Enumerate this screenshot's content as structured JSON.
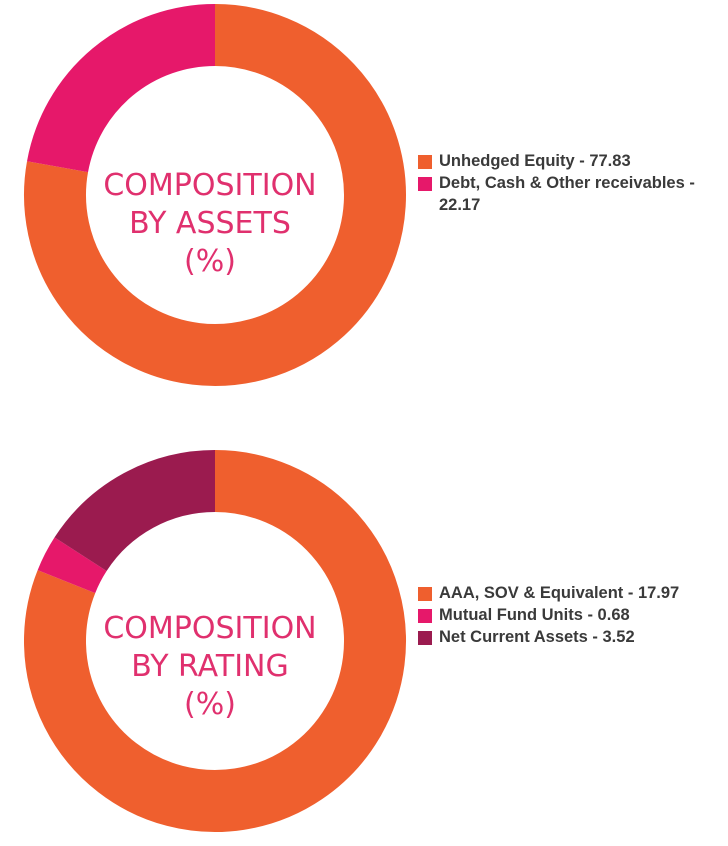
{
  "colors": {
    "orange": "#ef5f2e",
    "pink": "#e6186a",
    "maroon": "#9b1b4f",
    "title": "#e0306e"
  },
  "charts": [
    {
      "center_title_lines": [
        "COMPOSITION",
        "BY ASSETS",
        "(%)"
      ],
      "legend": [
        {
          "label": "Unhedged Equity - 77.83",
          "color": "#ef5f2e"
        },
        {
          "label": "Debt, Cash & Other receivables - 22.17",
          "color": "#e6186a"
        }
      ]
    },
    {
      "center_title_lines": [
        "COMPOSITION",
        "BY RATING",
        "(%)"
      ],
      "legend": [
        {
          "label": "AAA, SOV & Equivalent - 17.97",
          "color": "#ef5f2e"
        },
        {
          "label": "Mutual Fund Units - 0.68",
          "color": "#e6186a"
        },
        {
          "label": "Net Current Assets - 3.52",
          "color": "#9b1b4f"
        }
      ]
    }
  ],
  "chart_data": [
    {
      "type": "pie",
      "title": "COMPOSITION BY ASSETS (%)",
      "categories": [
        "Unhedged Equity",
        "Debt, Cash & Other receivables"
      ],
      "values": [
        77.83,
        22.17
      ],
      "colors": [
        "#ef5f2e",
        "#e6186a"
      ],
      "legend_position": "right"
    },
    {
      "type": "pie",
      "title": "COMPOSITION BY RATING (%)",
      "categories": [
        "AAA, SOV & Equivalent",
        "Mutual Fund Units",
        "Net Current Assets"
      ],
      "values": [
        17.97,
        0.68,
        3.52
      ],
      "colors": [
        "#ef5f2e",
        "#e6186a",
        "#9b1b4f"
      ],
      "legend_position": "right"
    }
  ]
}
